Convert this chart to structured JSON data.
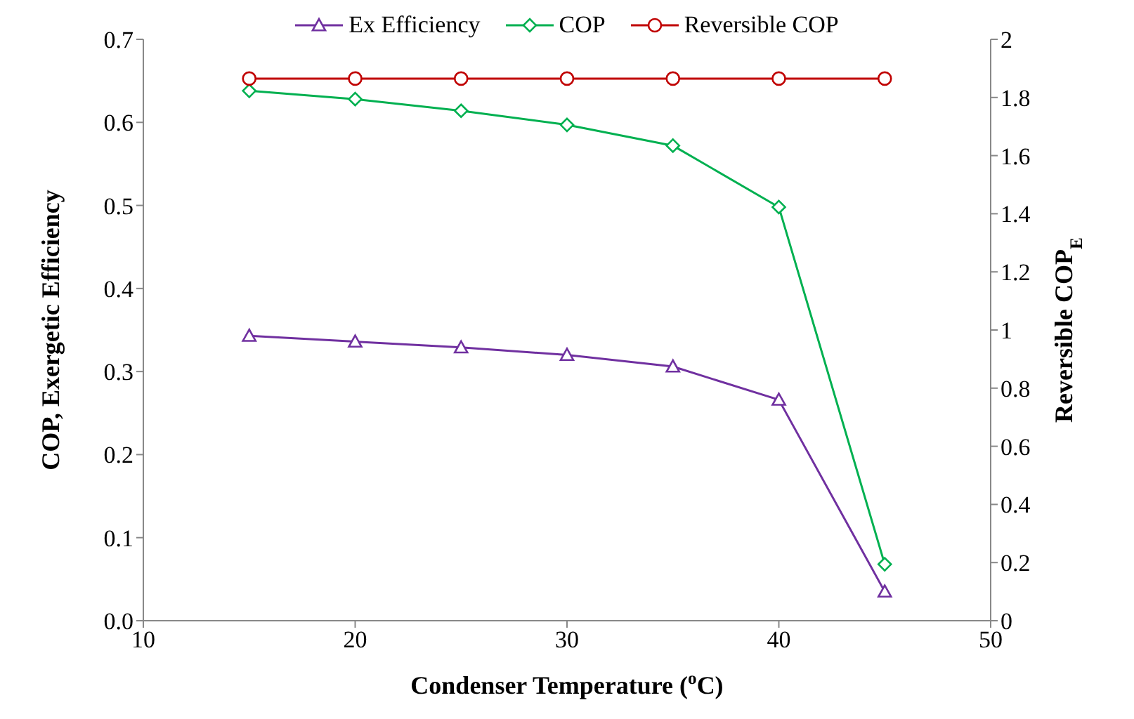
{
  "chart_data": {
    "type": "line",
    "xlabel": "Condenser Temperature ($^{o}$C)",
    "ylabel": "COP, Exergetic Efficiency",
    "y2label": "Reversible COP$_{E}$",
    "x": [
      15,
      20,
      25,
      30,
      35,
      40,
      45
    ],
    "series": [
      {
        "name": "Ex Efficiency",
        "color": "#7030a0",
        "marker": "triangle",
        "values": [
          0.343,
          0.336,
          0.329,
          0.32,
          0.306,
          0.266,
          0.035
        ]
      },
      {
        "name": "COP",
        "color": "#00b050",
        "marker": "diamond",
        "values": [
          0.638,
          0.628,
          0.614,
          0.597,
          0.572,
          0.498,
          0.068
        ]
      },
      {
        "name": "Reversible COP",
        "color": "#c00000",
        "marker": "circle",
        "axis": "y2",
        "values": [
          1.865,
          1.865,
          1.865,
          1.865,
          1.865,
          1.865,
          1.865
        ]
      }
    ],
    "xlim": [
      10,
      50
    ],
    "xticks": [
      10,
      20,
      30,
      40,
      50
    ],
    "ylim": [
      0,
      0.7
    ],
    "yticks": [
      {
        "value": 0,
        "label": "0.0"
      },
      0.1,
      0.2,
      0.3,
      0.4,
      0.5,
      0.6,
      0.7
    ],
    "y2lim": [
      0,
      2
    ],
    "y2ticks": [
      0,
      0.2,
      0.4,
      0.6,
      0.8,
      1,
      1.2,
      1.4,
      1.6,
      1.8,
      2
    ],
    "grid": false,
    "legend": "top",
    "line_style": "solid"
  }
}
